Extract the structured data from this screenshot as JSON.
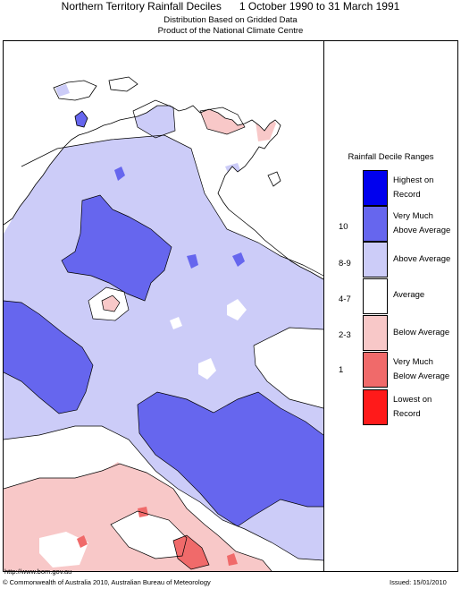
{
  "header": {
    "title": "Northern Territory Rainfall Deciles      1 October 1990 to 31 March 1991",
    "subtitle1": "Distribution Based on Gridded Data",
    "subtitle2": "Product of the National Climate Centre"
  },
  "legend": {
    "title": "Rainfall Decile Ranges",
    "items": [
      {
        "decile": "",
        "label": "Highest on Record",
        "color": "#0000ee"
      },
      {
        "decile": "10",
        "label": "Very Much Above Average",
        "color": "#6666ee"
      },
      {
        "decile": "8-9",
        "label": "Above Average",
        "color": "#ccccf8"
      },
      {
        "decile": "4-7",
        "label": "Average",
        "color": "#ffffff"
      },
      {
        "decile": "2-3",
        "label": "Below Average",
        "color": "#f8c8c8"
      },
      {
        "decile": "1",
        "label": "Very Much Below Average",
        "color": "#f06a6a"
      },
      {
        "decile": "",
        "label": "Lowest on Record",
        "color": "#ff1a1a"
      }
    ]
  },
  "footer": {
    "url": "http://www.bom.gov.au",
    "copyright": "© Commonwealth of Australia 2010, Australian Bureau of Meteorology",
    "issued": "Issued: 15/01/2010"
  }
}
